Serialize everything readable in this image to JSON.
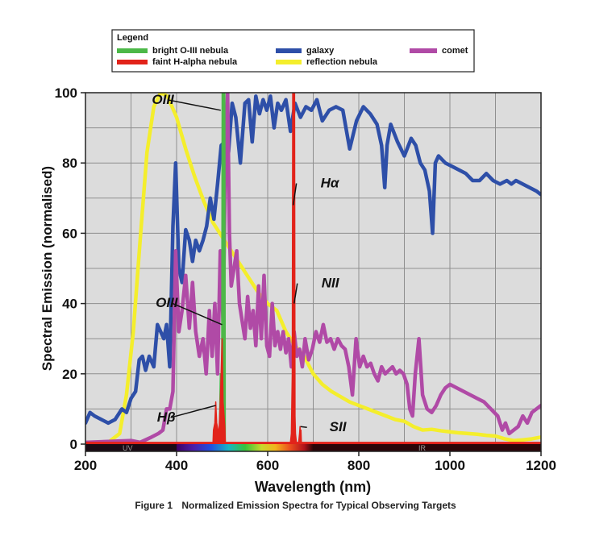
{
  "figure": {
    "caption_number": "Figure 1",
    "caption_text": "Normalized Emission Spectra for Typical Observing Targets"
  },
  "chart_data": {
    "type": "line",
    "xlabel": "Wavelength (nm)",
    "ylabel": "Spectral Emission (normalised)",
    "xlim": [
      200,
      1200
    ],
    "ylim": [
      0,
      100
    ],
    "x_ticks": [
      200,
      400,
      600,
      800,
      1000,
      1200
    ],
    "y_ticks": [
      0,
      20,
      40,
      60,
      80,
      100
    ],
    "grid": true,
    "band_labels": {
      "uv": "UV",
      "ir": "IR"
    },
    "visible_band_nm": [
      400,
      700
    ],
    "legend": {
      "title": "Legend",
      "placement": "top",
      "entries": [
        {
          "label": "bright O-III nebula",
          "color": "#4cb848"
        },
        {
          "label": "faint H-alpha nebula",
          "color": "#e2231a"
        },
        {
          "label": "galaxy",
          "color": "#2e4fa8"
        },
        {
          "label": "reflection nebula",
          "color": "#f4ee2c"
        },
        {
          "label": "comet",
          "color": "#b04aa6"
        }
      ]
    },
    "annotations": [
      {
        "label": "OIII",
        "x": 497,
        "y": 95
      },
      {
        "label": "Hα",
        "x": 656,
        "y": 68
      },
      {
        "label": "NII",
        "x": 658,
        "y": 40
      },
      {
        "label": "OIII",
        "x": 500,
        "y": 34
      },
      {
        "label": "Hβ",
        "x": 486,
        "y": 11
      },
      {
        "label": "SII",
        "x": 672,
        "y": 5
      }
    ],
    "series": [
      {
        "name": "reflection nebula",
        "color": "#f4ee2c",
        "x": [
          200,
          250,
          275,
          290,
          305,
          320,
          335,
          350,
          365,
          380,
          400,
          420,
          440,
          460,
          480,
          500,
          520,
          540,
          560,
          580,
          600,
          620,
          640,
          660,
          680,
          700,
          720,
          740,
          760,
          780,
          800,
          820,
          840,
          860,
          880,
          900,
          920,
          940,
          960,
          980,
          1000,
          1020,
          1040,
          1060,
          1080,
          1100,
          1120,
          1140,
          1160,
          1180,
          1200
        ],
        "y": [
          0.5,
          0.5,
          3,
          14,
          32,
          58,
          83,
          96,
          100,
          99,
          93,
          84,
          76,
          69,
          63,
          59,
          55,
          51,
          47,
          43,
          40,
          38,
          32,
          28,
          25,
          20,
          17,
          15,
          13.5,
          12,
          11,
          10,
          9,
          8,
          7,
          6.5,
          5,
          4,
          4.2,
          3.8,
          3.5,
          3.2,
          3,
          2.8,
          2.5,
          2.3,
          1.5,
          1,
          1.2,
          1.5,
          2
        ]
      },
      {
        "name": "galaxy",
        "color": "#2e4fa8",
        "x": [
          200,
          210,
          220,
          235,
          250,
          265,
          280,
          290,
          300,
          310,
          318,
          325,
          332,
          340,
          350,
          358,
          365,
          372,
          378,
          385,
          392,
          398,
          405,
          412,
          420,
          428,
          435,
          442,
          450,
          458,
          466,
          474,
          482,
          490,
          498,
          506,
          514,
          522,
          530,
          540,
          550,
          558,
          566,
          574,
          582,
          590,
          598,
          606,
          614,
          622,
          630,
          640,
          650,
          660,
          672,
          684,
          696,
          708,
          720,
          735,
          750,
          765,
          780,
          795,
          810,
          825,
          840,
          850,
          857,
          862,
          870,
          885,
          900,
          915,
          925,
          935,
          945,
          955,
          962,
          968,
          975,
          990,
          1005,
          1020,
          1035,
          1050,
          1065,
          1080,
          1095,
          1110,
          1125,
          1135,
          1145,
          1160,
          1175,
          1190,
          1200
        ],
        "y": [
          6,
          9,
          8,
          7,
          6,
          7,
          10,
          9,
          13,
          15,
          24,
          25,
          21,
          25,
          22,
          34,
          32,
          30,
          34,
          22,
          62,
          80,
          50,
          46,
          61,
          58,
          52,
          58,
          55,
          58,
          62,
          70,
          64,
          74,
          85,
          86,
          83,
          97,
          93,
          80,
          97,
          98,
          86,
          99,
          94,
          98,
          95,
          99,
          90,
          97,
          95,
          98,
          89,
          97,
          93,
          96,
          95,
          98,
          92,
          95,
          96,
          95,
          84,
          92,
          96,
          94,
          91,
          85,
          73,
          85,
          91,
          86,
          82,
          87,
          85,
          80,
          78,
          72,
          60,
          80,
          82,
          80,
          79,
          78,
          77,
          75,
          75,
          77,
          75,
          74,
          75,
          74,
          75,
          74,
          73,
          72,
          71
        ]
      },
      {
        "name": "comet",
        "color": "#b04aa6",
        "x": [
          200,
          300,
          320,
          345,
          360,
          370,
          378,
          385,
          392,
          398,
          405,
          412,
          420,
          428,
          435,
          442,
          450,
          458,
          465,
          472,
          478,
          484,
          490,
          496,
          502,
          508,
          512,
          516,
          520,
          526,
          532,
          538,
          544,
          550,
          556,
          562,
          568,
          574,
          580,
          586,
          592,
          598,
          604,
          610,
          616,
          622,
          628,
          634,
          640,
          646,
          652,
          658,
          664,
          670,
          676,
          682,
          690,
          698,
          706,
          714,
          722,
          730,
          738,
          746,
          754,
          762,
          770,
          778,
          786,
          794,
          802,
          810,
          818,
          826,
          834,
          842,
          850,
          858,
          866,
          874,
          882,
          890,
          898,
          906,
          912,
          918,
          924,
          932,
          940,
          950,
          960,
          970,
          980,
          990,
          1000,
          1015,
          1030,
          1045,
          1060,
          1075,
          1090,
          1105,
          1115,
          1122,
          1130,
          1140,
          1150,
          1160,
          1170,
          1180,
          1190,
          1200
        ],
        "y": [
          0.5,
          1,
          0.5,
          2,
          3,
          4,
          10,
          10,
          15,
          55,
          32,
          38,
          48,
          33,
          46,
          32,
          25,
          30,
          20,
          38,
          25,
          40,
          20,
          55,
          35,
          85,
          100,
          60,
          45,
          50,
          55,
          40,
          35,
          30,
          42,
          33,
          38,
          28,
          45,
          30,
          48,
          28,
          25,
          40,
          28,
          32,
          27,
          32,
          26,
          30,
          22,
          32,
          25,
          27,
          22,
          30,
          24,
          27,
          32,
          29,
          34,
          29,
          30,
          27,
          30,
          28,
          27,
          22,
          14,
          30,
          22,
          25,
          22,
          23,
          20,
          18,
          22,
          20,
          21,
          22,
          20,
          21,
          20,
          17,
          10,
          8,
          20,
          30,
          14,
          10,
          9,
          11,
          14,
          16,
          17,
          16,
          15,
          14,
          13,
          12,
          10,
          8,
          4,
          6,
          3,
          4,
          5,
          8,
          6,
          9,
          10,
          11
        ]
      },
      {
        "name": "bright O-III nebula",
        "color": "#4cb848",
        "x": [
          200,
          494,
          495,
          496,
          499,
          500,
          501,
          502,
          503,
          504,
          505,
          506,
          507,
          508,
          1200
        ],
        "y": [
          0,
          0,
          12,
          20,
          20,
          100,
          100,
          100,
          100,
          100,
          100,
          100,
          0,
          0,
          0
        ]
      },
      {
        "name": "faint H-alpha nebula",
        "color": "#e2231a",
        "x": [
          200,
          480,
          481,
          484,
          486,
          488,
          491,
          492,
          496,
          500,
          502,
          506,
          507,
          650,
          652,
          654,
          655,
          656,
          657,
          658,
          659,
          660,
          661,
          663,
          668,
          670,
          671,
          672,
          673,
          674,
          680,
          700,
          1200
        ],
        "y": [
          0.5,
          0.5,
          4,
          6,
          12,
          6,
          4,
          0.5,
          12,
          30,
          12,
          5,
          0.5,
          0.5,
          3,
          20,
          100,
          100,
          100,
          100,
          100,
          8,
          3,
          0.5,
          0.5,
          3,
          5,
          3,
          4,
          0.5,
          0.5,
          0.5,
          0.5
        ]
      }
    ]
  }
}
